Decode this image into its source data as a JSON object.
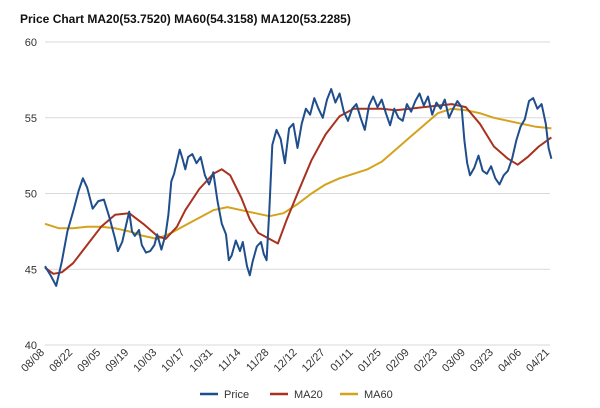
{
  "chart_data": {
    "type": "line",
    "title": "Price Chart MA20(53.7520) MA60(54.3158) MA120(53.2285)",
    "xlabel": "",
    "ylabel": "",
    "ylim": [
      40,
      60
    ],
    "yticks": [
      40,
      45,
      50,
      55,
      60
    ],
    "xticks": [
      "08/08",
      "08/22",
      "09/05",
      "09/19",
      "10/03",
      "10/17",
      "10/31",
      "11/14",
      "11/28",
      "12/12",
      "12/27",
      "01/11",
      "01/25",
      "02/09",
      "02/23",
      "03/09",
      "03/23",
      "04/06",
      "04/21"
    ],
    "grid": "horizontal",
    "legend": "bottom",
    "series": [
      {
        "name": "Price",
        "color": "#1f4e8c",
        "points": [
          [
            0,
            45.2
          ],
          [
            0.2,
            44.6
          ],
          [
            0.4,
            43.9
          ],
          [
            0.6,
            45.5
          ],
          [
            0.8,
            47.5
          ],
          [
            1.0,
            48.8
          ],
          [
            1.2,
            50.2
          ],
          [
            1.35,
            51.0
          ],
          [
            1.5,
            50.4
          ],
          [
            1.7,
            49.0
          ],
          [
            1.9,
            49.5
          ],
          [
            2.1,
            49.6
          ],
          [
            2.3,
            48.4
          ],
          [
            2.5,
            47.0
          ],
          [
            2.6,
            46.2
          ],
          [
            2.75,
            46.8
          ],
          [
            2.9,
            48.0
          ],
          [
            3.0,
            48.8
          ],
          [
            3.1,
            47.5
          ],
          [
            3.2,
            47.2
          ],
          [
            3.35,
            47.6
          ],
          [
            3.45,
            46.6
          ],
          [
            3.6,
            46.1
          ],
          [
            3.75,
            46.2
          ],
          [
            3.9,
            46.6
          ],
          [
            4.0,
            47.3
          ],
          [
            4.15,
            46.3
          ],
          [
            4.3,
            47.3
          ],
          [
            4.4,
            48.6
          ],
          [
            4.5,
            50.8
          ],
          [
            4.6,
            51.3
          ],
          [
            4.7,
            52.1
          ],
          [
            4.8,
            52.9
          ],
          [
            4.9,
            52.3
          ],
          [
            5.0,
            51.6
          ],
          [
            5.1,
            52.4
          ],
          [
            5.25,
            52.6
          ],
          [
            5.4,
            52.0
          ],
          [
            5.55,
            52.4
          ],
          [
            5.7,
            51.2
          ],
          [
            5.85,
            50.6
          ],
          [
            6.0,
            51.4
          ],
          [
            6.15,
            49.5
          ],
          [
            6.3,
            48.0
          ],
          [
            6.45,
            47.3
          ],
          [
            6.55,
            45.6
          ],
          [
            6.65,
            45.9
          ],
          [
            6.8,
            46.9
          ],
          [
            6.95,
            46.2
          ],
          [
            7.05,
            46.8
          ],
          [
            7.2,
            45.2
          ],
          [
            7.3,
            44.6
          ],
          [
            7.4,
            45.5
          ],
          [
            7.55,
            46.5
          ],
          [
            7.7,
            46.8
          ],
          [
            7.8,
            46.0
          ],
          [
            7.9,
            45.6
          ],
          [
            8.0,
            49.0
          ],
          [
            8.1,
            53.2
          ],
          [
            8.25,
            54.2
          ],
          [
            8.4,
            53.6
          ],
          [
            8.55,
            52.0
          ],
          [
            8.7,
            54.3
          ],
          [
            8.85,
            54.6
          ],
          [
            9.0,
            53.0
          ],
          [
            9.15,
            54.6
          ],
          [
            9.3,
            55.6
          ],
          [
            9.45,
            55.2
          ],
          [
            9.6,
            56.3
          ],
          [
            9.75,
            55.6
          ],
          [
            9.9,
            55.0
          ],
          [
            10.05,
            56.2
          ],
          [
            10.2,
            56.9
          ],
          [
            10.35,
            56.0
          ],
          [
            10.5,
            56.6
          ],
          [
            10.65,
            55.4
          ],
          [
            10.8,
            54.8
          ],
          [
            10.95,
            55.6
          ],
          [
            11.1,
            55.9
          ],
          [
            11.25,
            55.0
          ],
          [
            11.4,
            54.2
          ],
          [
            11.55,
            55.8
          ],
          [
            11.7,
            56.4
          ],
          [
            11.85,
            55.7
          ],
          [
            12.0,
            56.2
          ],
          [
            12.15,
            55.3
          ],
          [
            12.3,
            54.5
          ],
          [
            12.45,
            55.6
          ],
          [
            12.6,
            55.0
          ],
          [
            12.75,
            54.8
          ],
          [
            12.9,
            55.9
          ],
          [
            13.05,
            55.4
          ],
          [
            13.2,
            56.1
          ],
          [
            13.35,
            56.6
          ],
          [
            13.5,
            55.8
          ],
          [
            13.65,
            56.4
          ],
          [
            13.8,
            55.2
          ],
          [
            13.95,
            56.0
          ],
          [
            14.1,
            55.6
          ],
          [
            14.25,
            56.2
          ],
          [
            14.4,
            55.0
          ],
          [
            14.55,
            55.6
          ],
          [
            14.7,
            56.1
          ],
          [
            14.85,
            55.7
          ],
          [
            14.95,
            53.5
          ],
          [
            15.05,
            52.0
          ],
          [
            15.15,
            51.2
          ],
          [
            15.3,
            51.7
          ],
          [
            15.45,
            52.5
          ],
          [
            15.6,
            51.5
          ],
          [
            15.75,
            51.3
          ],
          [
            15.9,
            51.8
          ],
          [
            16.05,
            51.0
          ],
          [
            16.2,
            50.6
          ],
          [
            16.35,
            51.2
          ],
          [
            16.5,
            51.5
          ],
          [
            16.65,
            52.3
          ],
          [
            16.8,
            53.5
          ],
          [
            16.95,
            54.4
          ],
          [
            17.1,
            54.9
          ],
          [
            17.25,
            56.1
          ],
          [
            17.4,
            56.3
          ],
          [
            17.55,
            55.6
          ],
          [
            17.7,
            55.9
          ],
          [
            17.85,
            54.6
          ],
          [
            17.95,
            53.0
          ],
          [
            18.05,
            52.3
          ]
        ]
      },
      {
        "name": "MA20",
        "color": "#a8321f",
        "points": [
          [
            0,
            45.1
          ],
          [
            0.3,
            44.7
          ],
          [
            0.6,
            44.8
          ],
          [
            1.0,
            45.4
          ],
          [
            1.5,
            46.6
          ],
          [
            2.0,
            47.8
          ],
          [
            2.5,
            48.6
          ],
          [
            3.0,
            48.7
          ],
          [
            3.5,
            48.0
          ],
          [
            4.0,
            47.2
          ],
          [
            4.3,
            47.0
          ],
          [
            4.7,
            47.8
          ],
          [
            5.0,
            48.9
          ],
          [
            5.5,
            50.3
          ],
          [
            6.0,
            51.3
          ],
          [
            6.3,
            51.6
          ],
          [
            6.6,
            51.2
          ],
          [
            7.0,
            49.7
          ],
          [
            7.3,
            48.3
          ],
          [
            7.6,
            47.4
          ],
          [
            8.0,
            47.0
          ],
          [
            8.3,
            46.7
          ],
          [
            8.6,
            48.2
          ],
          [
            9.0,
            50.0
          ],
          [
            9.5,
            52.2
          ],
          [
            10.0,
            53.9
          ],
          [
            10.5,
            55.1
          ],
          [
            11.0,
            55.6
          ],
          [
            11.5,
            55.6
          ],
          [
            12.0,
            55.6
          ],
          [
            12.5,
            55.5
          ],
          [
            13.0,
            55.6
          ],
          [
            13.5,
            55.7
          ],
          [
            14.0,
            55.8
          ],
          [
            14.5,
            55.9
          ],
          [
            15.0,
            55.7
          ],
          [
            15.5,
            54.6
          ],
          [
            16.0,
            53.1
          ],
          [
            16.5,
            52.3
          ],
          [
            16.85,
            51.9
          ],
          [
            17.2,
            52.4
          ],
          [
            17.6,
            53.1
          ],
          [
            18.05,
            53.7
          ]
        ]
      },
      {
        "name": "MA60",
        "color": "#d4a21c",
        "points": [
          [
            0,
            48.0
          ],
          [
            0.5,
            47.7
          ],
          [
            1.0,
            47.7
          ],
          [
            1.5,
            47.8
          ],
          [
            2.0,
            47.8
          ],
          [
            2.5,
            47.7
          ],
          [
            3.0,
            47.5
          ],
          [
            3.5,
            47.2
          ],
          [
            4.0,
            47.0
          ],
          [
            4.5,
            47.4
          ],
          [
            5.0,
            47.9
          ],
          [
            5.5,
            48.4
          ],
          [
            6.0,
            48.9
          ],
          [
            6.5,
            49.1
          ],
          [
            7.0,
            48.9
          ],
          [
            7.5,
            48.7
          ],
          [
            8.0,
            48.5
          ],
          [
            8.5,
            48.7
          ],
          [
            9.0,
            49.3
          ],
          [
            9.5,
            50.0
          ],
          [
            10.0,
            50.6
          ],
          [
            10.5,
            51.0
          ],
          [
            11.0,
            51.3
          ],
          [
            11.5,
            51.6
          ],
          [
            12.0,
            52.1
          ],
          [
            12.5,
            52.9
          ],
          [
            13.0,
            53.7
          ],
          [
            13.5,
            54.5
          ],
          [
            14.0,
            55.3
          ],
          [
            14.5,
            55.6
          ],
          [
            15.0,
            55.5
          ],
          [
            15.5,
            55.3
          ],
          [
            16.0,
            55.0
          ],
          [
            16.5,
            54.8
          ],
          [
            17.0,
            54.6
          ],
          [
            17.5,
            54.4
          ],
          [
            18.05,
            54.3
          ]
        ]
      }
    ]
  }
}
